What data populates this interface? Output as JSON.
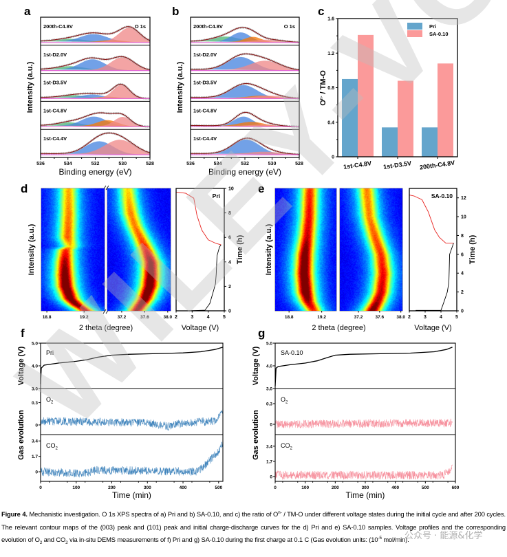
{
  "panels": {
    "a": "a",
    "b": "b",
    "c": "c",
    "d": "d",
    "e": "e",
    "f": "f",
    "g": "g"
  },
  "chart_data": [
    {
      "id": "a",
      "type": "area",
      "xlabel": "Binding energy (eV)",
      "ylabel": "Intensity (a.u.)",
      "xlim": [
        536,
        528
      ],
      "xticks": [
        536,
        534,
        532,
        530,
        528
      ],
      "annotation": "O 1s",
      "component_colors": [
        "#4fb87a",
        "#4a86e0",
        "#f57a0c",
        "#f08a8a"
      ],
      "envelope_color": "#8b1a1a",
      "baseline_color": "#e36bd6",
      "spectra": [
        {
          "label": "200th-C4.8V",
          "components": [
            {
              "center": 533.8,
              "amp": 0.16,
              "sigma": 1.1,
              "color": 0
            },
            {
              "center": 532.1,
              "amp": 0.45,
              "sigma": 1.0,
              "color": 1
            },
            {
              "center": 530.7,
              "amp": 0.12,
              "sigma": 0.8,
              "color": 2
            },
            {
              "center": 529.5,
              "amp": 0.85,
              "sigma": 0.75,
              "color": 3
            }
          ]
        },
        {
          "label": "1st-D2.0V",
          "components": [
            {
              "center": 533.8,
              "amp": 0.2,
              "sigma": 1.0,
              "color": 0
            },
            {
              "center": 532.2,
              "amp": 0.62,
              "sigma": 0.9,
              "color": 1
            },
            {
              "center": 530.0,
              "amp": 0.76,
              "sigma": 0.85,
              "color": 3
            }
          ]
        },
        {
          "label": "1st-D3.5V",
          "components": [
            {
              "center": 533.6,
              "amp": 0.15,
              "sigma": 0.9,
              "color": 0
            },
            {
              "center": 532.2,
              "amp": 0.2,
              "sigma": 0.8,
              "color": 1
            },
            {
              "center": 531.0,
              "amp": 0.08,
              "sigma": 0.7,
              "color": 2
            },
            {
              "center": 530.1,
              "amp": 0.78,
              "sigma": 0.6,
              "color": 3
            }
          ]
        },
        {
          "label": "1st-C4.8V",
          "components": [
            {
              "center": 533.9,
              "amp": 0.2,
              "sigma": 0.9,
              "color": 0
            },
            {
              "center": 532.1,
              "amp": 0.55,
              "sigma": 0.9,
              "color": 1
            },
            {
              "center": 531.1,
              "amp": 0.35,
              "sigma": 0.75,
              "color": 2
            },
            {
              "center": 530.0,
              "amp": 0.55,
              "sigma": 0.6,
              "color": 3
            }
          ]
        },
        {
          "label": "1st-C4.4V",
          "components": [
            {
              "center": 531.7,
              "amp": 0.75,
              "sigma": 1.0,
              "color": 1
            },
            {
              "center": 530.2,
              "amp": 0.85,
              "sigma": 1.1,
              "color": 3
            }
          ]
        }
      ]
    },
    {
      "id": "b",
      "type": "area",
      "xlabel": "Binding energy (eV)",
      "ylabel": "Intensity (a.u.)",
      "xlim": [
        536,
        528
      ],
      "xticks": [
        536,
        534,
        532,
        530,
        528
      ],
      "annotation": "O 1s",
      "spectra": [
        {
          "label": "200th-C4.8V",
          "components": [
            {
              "center": 533.4,
              "amp": 0.3,
              "sigma": 1.0,
              "color": 0
            },
            {
              "center": 532.3,
              "amp": 0.55,
              "sigma": 0.7,
              "color": 1
            },
            {
              "center": 531.4,
              "amp": 0.3,
              "sigma": 0.6,
              "color": 2
            },
            {
              "center": 530.2,
              "amp": 0.15,
              "sigma": 1.0,
              "color": 3
            }
          ]
        },
        {
          "label": "1st-D2.0V",
          "components": [
            {
              "center": 532.3,
              "amp": 0.75,
              "sigma": 1.0,
              "color": 1
            },
            {
              "center": 530.5,
              "amp": 0.55,
              "sigma": 1.1,
              "color": 3
            }
          ]
        },
        {
          "label": "1st-D3.5V",
          "components": [
            {
              "center": 532.1,
              "amp": 0.75,
              "sigma": 1.0,
              "color": 1
            },
            {
              "center": 530.8,
              "amp": 0.15,
              "sigma": 0.9,
              "color": 2
            },
            {
              "center": 530.2,
              "amp": 0.15,
              "sigma": 1.0,
              "color": 3
            }
          ]
        },
        {
          "label": "1st-C4.8V",
          "components": [
            {
              "center": 532.1,
              "amp": 0.55,
              "sigma": 0.7,
              "color": 1
            },
            {
              "center": 531.5,
              "amp": 0.25,
              "sigma": 0.9,
              "color": 2
            },
            {
              "center": 530.6,
              "amp": 0.1,
              "sigma": 1.0,
              "color": 3
            }
          ]
        },
        {
          "label": "1st-C4.4V",
          "components": [
            {
              "center": 531.9,
              "amp": 0.85,
              "sigma": 1.0,
              "color": 1
            },
            {
              "center": 530.5,
              "amp": 0.15,
              "sigma": 1.2,
              "color": 3
            }
          ]
        }
      ]
    },
    {
      "id": "c",
      "type": "bar",
      "categories": [
        "1st-C4.8V",
        "1st-D3.5V",
        "200th-C4.8V"
      ],
      "series": [
        {
          "name": "Pri",
          "values": [
            0.9,
            0.34,
            0.34
          ],
          "color": "#64a5cc"
        },
        {
          "name": "SA-0.10",
          "values": [
            1.41,
            0.88,
            1.08
          ],
          "color": "#fb9a9a"
        }
      ],
      "ylabel_base": "O",
      "ylabel_sup": "n-",
      "ylabel_rest": " / TM-O",
      "ylim": [
        0,
        1.6
      ],
      "yticks": [
        "0",
        "0.4",
        "0.8",
        "1.2",
        "1.6"
      ],
      "legend": "top-right"
    },
    {
      "id": "d",
      "type": "heatmap",
      "ylabel": "Intensity (a.u.)",
      "xlabel": "2 theta (degree)",
      "maps": [
        {
          "label": "(003)",
          "xlim": [
            18.74,
            19.42
          ],
          "xticks": [
            "18.8",
            "19.2"
          ],
          "peak_time_h": [
            0,
            0.5,
            1,
            2,
            3,
            4,
            5,
            5.3,
            6,
            8,
            10
          ],
          "peak_position": [
            19.22,
            19.12,
            19.05,
            19.0,
            18.99,
            18.99,
            19.0,
            19.05,
            19.02,
            19.03,
            19.03
          ],
          "peak_intensity": [
            0.9,
            1.0,
            1.05,
            1.1,
            1.05,
            0.95,
            0.8,
            0.6,
            0.75,
            0.7,
            0.65
          ]
        },
        {
          "label": "(101)",
          "xlim": [
            36.95,
            38.05
          ],
          "xticks": [
            "37.2",
            "37.6",
            "38.0"
          ],
          "peak_time_h": [
            0,
            1,
            2,
            3,
            4,
            5,
            6,
            7,
            8,
            9,
            10
          ],
          "peak_position": [
            37.45,
            37.6,
            37.68,
            37.7,
            37.7,
            37.62,
            37.52,
            37.42,
            37.35,
            37.32,
            37.3
          ],
          "peak_intensity": [
            0.95,
            1.05,
            1.1,
            1.05,
            1.0,
            0.85,
            0.75,
            0.7,
            0.7,
            0.65,
            0.6
          ]
        }
      ],
      "voltage": {
        "label": "Pri",
        "xlabel": "Voltage (V)",
        "ylabel": "Time (h)",
        "xlim": [
          2,
          5
        ],
        "xticks": [
          "2",
          "3",
          "4",
          "5"
        ],
        "ylim": [
          0,
          10
        ],
        "yticks": [
          "0",
          "2",
          "4",
          "6",
          "8",
          "10"
        ],
        "charge": {
          "color": "#000000",
          "voltage": [
            2.8,
            3.8,
            4.1,
            4.3,
            4.45,
            4.5,
            4.55,
            4.7,
            4.8
          ],
          "time_h": [
            0,
            0.05,
            0.6,
            1.5,
            2.2,
            3,
            4.5,
            5.2,
            5.4
          ]
        },
        "discharge": {
          "color": "#e8231f",
          "voltage": [
            4.8,
            4.5,
            4.0,
            3.6,
            3.3,
            3.1,
            2.6,
            2.0
          ],
          "time_h": [
            5.4,
            5.5,
            5.8,
            6.6,
            7.8,
            9.2,
            9.6,
            9.7
          ]
        }
      }
    },
    {
      "id": "e",
      "type": "heatmap",
      "ylabel": "Intensity (a.u.)",
      "xlabel": "2 theta (degree)",
      "maps": [
        {
          "label": "(003)",
          "xlim": [
            18.63,
            19.38
          ],
          "xticks": [
            "18.8",
            "19.2"
          ],
          "peak_time_h": [
            0,
            1,
            2,
            4,
            6,
            8,
            10,
            13
          ],
          "peak_position": [
            19.1,
            19.03,
            19.0,
            18.98,
            18.99,
            19.02,
            19.04,
            19.05
          ],
          "peak_intensity": [
            0.8,
            0.95,
            1.1,
            1.1,
            1.05,
            0.9,
            0.85,
            0.8
          ]
        },
        {
          "label": "(101)",
          "xlim": [
            36.85,
            38.03
          ],
          "xticks": [
            "37.2",
            "37.6",
            "38.0"
          ],
          "peak_time_h": [
            0,
            1,
            2,
            4,
            6,
            8,
            10,
            13
          ],
          "peak_position": [
            37.45,
            37.55,
            37.62,
            37.66,
            37.62,
            37.5,
            37.4,
            37.35
          ],
          "peak_intensity": [
            1.05,
            0.95,
            0.9,
            0.85,
            0.8,
            0.75,
            0.7,
            0.7
          ]
        }
      ],
      "voltage": {
        "label": "SA-0.10",
        "xlabel": "Voltage (V)",
        "ylabel": "Time (h)",
        "xlim": [
          2,
          5
        ],
        "xticks": [
          "2",
          "3",
          "4",
          "5"
        ],
        "ylim": [
          0,
          13
        ],
        "yticks": [
          "0",
          "2",
          "4",
          "6",
          "8",
          "10",
          "12"
        ],
        "charge": {
          "color": "#000000",
          "voltage": [
            2.4,
            4.0,
            4.2,
            4.4,
            4.5,
            4.55,
            4.8
          ],
          "time_h": [
            0.05,
            0.05,
            1,
            2,
            3,
            6,
            7.2
          ]
        },
        "discharge": {
          "color": "#e8231f",
          "voltage": [
            4.8,
            4.3,
            3.9,
            3.6,
            3.2,
            2.8,
            2.3,
            2.0
          ],
          "time_h": [
            7.2,
            7.2,
            7.8,
            8.6,
            10.5,
            11.8,
            12.2,
            12.3
          ]
        }
      }
    },
    {
      "id": "f",
      "type": "line",
      "label": "Pri",
      "xlabel": "Time (min)",
      "xlim": [
        0,
        512
      ],
      "xticks": [
        "0",
        "100",
        "200",
        "300",
        "400",
        "500"
      ],
      "voltage": {
        "ylabel": "Voltage (V)",
        "ylim": [
          3,
          5
        ],
        "yticks": [
          "3.0",
          "4.0",
          "5.0"
        ],
        "color": "#000000",
        "time_min": [
          0,
          2,
          10,
          50,
          100,
          130,
          160,
          200,
          250,
          400,
          450,
          490,
          512
        ],
        "voltage": [
          3.2,
          3.9,
          4.03,
          4.12,
          4.2,
          4.27,
          4.38,
          4.47,
          4.51,
          4.57,
          4.62,
          4.72,
          4.82
        ]
      },
      "gas_ylabel": "Gas evolution",
      "o2": {
        "base": "O",
        "sub": "2",
        "ylim": [
          -0.13,
          0.49
        ],
        "yticks": [
          "0",
          "0.3"
        ],
        "color": "#1f6fb0",
        "time_min": [
          0,
          300,
          360,
          400,
          490,
          512
        ],
        "value": [
          0.05,
          0.03,
          -0.02,
          0.03,
          0.05,
          0.2
        ]
      },
      "co2": {
        "base": "CO",
        "sub": "2",
        "ylim": [
          -1.06,
          4.1
        ],
        "yticks": [
          "0",
          "1.7",
          "3.4"
        ],
        "color": "#1f6fb0",
        "time_min": [
          0,
          120,
          160,
          300,
          440,
          470,
          500,
          512
        ],
        "value": [
          0,
          -0.2,
          0.2,
          0.1,
          0.0,
          1.0,
          2.3,
          3.0
        ]
      }
    },
    {
      "id": "g",
      "type": "line",
      "label": "SA-0.10",
      "xlabel": "Time (min)",
      "xlim": [
        0,
        600
      ],
      "xticks": [
        "0",
        "100",
        "200",
        "300",
        "400",
        "500",
        "600"
      ],
      "voltage": {
        "ylabel": "Voltage (V)",
        "ylim": [
          3,
          5
        ],
        "yticks": [
          "3.0",
          "4.0",
          "5.0"
        ],
        "color": "#000000",
        "time_min": [
          0,
          3,
          10,
          50,
          100,
          140,
          170,
          200,
          250,
          450,
          530,
          570,
          590
        ],
        "voltage": [
          3.1,
          3.9,
          3.97,
          4.05,
          4.12,
          4.22,
          4.35,
          4.47,
          4.51,
          4.56,
          4.62,
          4.72,
          4.82
        ]
      },
      "gas_ylabel": "Gas evolution",
      "o2": {
        "base": "O",
        "sub": "2",
        "ylim": [
          -0.15,
          0.52
        ],
        "yticks": [
          "0",
          "0.3"
        ],
        "color": "#f47c8c",
        "time_min": [
          0,
          590
        ],
        "value": [
          0.0,
          0.02
        ]
      },
      "co2": {
        "base": "CO",
        "sub": "2",
        "ylim": [
          -0.54,
          4.7
        ],
        "yticks": [
          "0",
          "1.7",
          "3.4"
        ],
        "color": "#f47c8c",
        "time_min": [
          0,
          560,
          590
        ],
        "value": [
          0.15,
          0.15,
          0.9
        ]
      }
    }
  ],
  "caption": {
    "label": "Figure 4.",
    "t1": " Mechanistic investigation. O 1s XPS spectra of a) Pri and b) SA-0.10, and c) the ratio of O",
    "sup1": "n-",
    "t2": " / TM-O under different voltage states during the initial cycle and after 200 cycles. The relevant contour maps of the (003) peak and (101) peak and initial charge-discharge curves for the d) Pri and e) SA-0.10 samples. Voltage profiles and the corresponding evolution of O",
    "sub1": "2",
    "t3": " and CO",
    "sub2": "2",
    "t4": " via in-situ DEMS measurements of f) Pri and g) SA-0.10 during the first charge at 0.1 C (Gas evolution units: (10",
    "sup2": "-5",
    "t5": " mol/min)."
  },
  "watermark": {
    "text": "WILEY-VCH",
    "source": "公众号 · 能源&化学"
  }
}
